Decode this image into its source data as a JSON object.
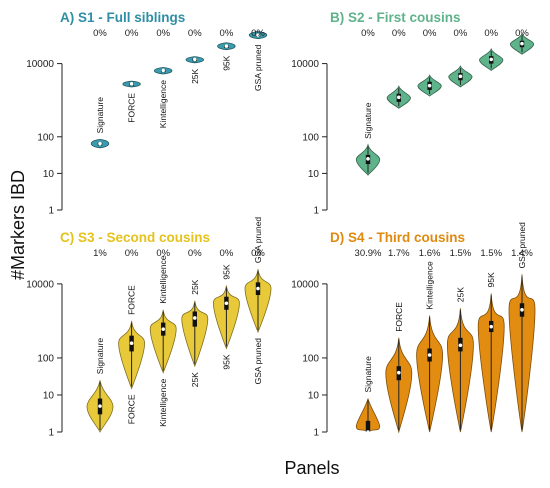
{
  "figure": {
    "ylabel": "#Markers IBD",
    "xlabel": "Panels"
  },
  "chart_data": [
    {
      "type": "violin",
      "title": "A) S1 - Full siblings",
      "color": "#3a9cae",
      "title_color": "#2f8ea6",
      "ylabel": "#Markers IBD",
      "xlabel": "Panels",
      "yscale": "log",
      "ylim": [
        1,
        50000
      ],
      "yticks": [
        "1",
        "10",
        "100",
        "10000"
      ],
      "categories": [
        "Signature",
        "FORCE",
        "Kintelligence",
        "25K",
        "95K",
        "GSA pruned"
      ],
      "percent_labels": [
        "0%",
        "0%",
        "0%",
        "0%",
        "0%",
        "0%"
      ],
      "median": [
        65,
        2800,
        6500,
        13000,
        30000,
        60000
      ],
      "q1": [
        60,
        2600,
        6000,
        12000,
        28000,
        55000
      ],
      "q3": [
        70,
        3000,
        7000,
        14000,
        32000,
        65000
      ],
      "min": [
        50,
        2300,
        5200,
        10500,
        24000,
        48000
      ],
      "max": [
        85,
        3300,
        7800,
        15500,
        37000,
        75000
      ]
    },
    {
      "type": "violin",
      "title": "B) S2 - First cousins",
      "color": "#5fb38a",
      "title_color": "#5fb38a",
      "ylabel": "#Markers IBD",
      "xlabel": "Panels",
      "yscale": "log",
      "ylim": [
        1,
        50000
      ],
      "yticks": [
        "1",
        "10",
        "100",
        "10000"
      ],
      "categories": [
        "Signature",
        "FORCE",
        "Kintelligence",
        "25K",
        "95K",
        "GSA pruned"
      ],
      "percent_labels": [
        "0%",
        "0%",
        "0%",
        "0%",
        "0%",
        "0%"
      ],
      "median": [
        25,
        1200,
        2500,
        4500,
        13000,
        35000
      ],
      "q1": [
        18,
        900,
        1900,
        3500,
        10000,
        28000
      ],
      "q3": [
        32,
        1500,
        3200,
        5500,
        16000,
        42000
      ],
      "min": [
        9,
        600,
        1300,
        2300,
        6500,
        18000
      ],
      "max": [
        60,
        2400,
        4800,
        8500,
        25000,
        65000
      ]
    },
    {
      "type": "violin",
      "title": "C) S3 - Second cousins",
      "color": "#e8c93a",
      "title_color": "#e6c21c",
      "ylabel": "#Markers IBD",
      "xlabel": "Panels",
      "yscale": "log",
      "ylim": [
        1,
        50000
      ],
      "yticks": [
        "1",
        "10",
        "100",
        "10000"
      ],
      "categories": [
        "Signature",
        "FORCE",
        "Kintelligence",
        "25K",
        "95K",
        "GSA pruned"
      ],
      "percent_labels": [
        "1%",
        "0%",
        "0%",
        "0%",
        "0%",
        "0%"
      ],
      "median": [
        5,
        250,
        600,
        1200,
        3000,
        7500
      ],
      "q1": [
        3,
        150,
        400,
        700,
        2000,
        5000
      ],
      "q3": [
        8,
        400,
        900,
        1800,
        4500,
        11000
      ],
      "min": [
        1,
        15,
        40,
        60,
        180,
        500
      ],
      "max": [
        25,
        1000,
        2000,
        3500,
        9000,
        25000
      ]
    },
    {
      "type": "violin",
      "title": "D) S4 - Third cousins",
      "color": "#e38c12",
      "title_color": "#e08a10",
      "ylabel": "#Markers IBD",
      "xlabel": "Panels",
      "yscale": "log",
      "ylim": [
        1,
        50000
      ],
      "yticks": [
        "1",
        "10",
        "100",
        "10000"
      ],
      "categories": [
        "Signature",
        "FORCE",
        "Kintelligence",
        "25K",
        "95K",
        "GSA pruned"
      ],
      "percent_labels": [
        "30.9%",
        "1.7%",
        "1.6%",
        "1.5%",
        "1.5%",
        "1.4%"
      ],
      "median": [
        1,
        40,
        120,
        220,
        700,
        2000
      ],
      "q1": [
        1,
        25,
        80,
        150,
        500,
        1300
      ],
      "q3": [
        2,
        60,
        180,
        350,
        1000,
        3000
      ],
      "min": [
        1,
        1,
        1,
        1,
        1,
        1
      ],
      "max": [
        8,
        350,
        1400,
        2200,
        5500,
        18000
      ]
    }
  ]
}
